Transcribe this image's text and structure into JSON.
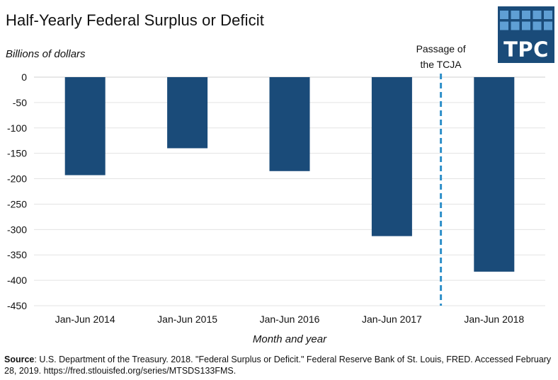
{
  "header": {
    "title": "Half-Yearly Federal Surplus or Deficit",
    "logo_text": "TPC"
  },
  "colors": {
    "bar": "#1a4b79",
    "logo_background": "#1a4b79",
    "logo_squares": "#5f9fd4",
    "divider_line": "#2e8fc9",
    "grid": "#e3e3e3"
  },
  "chart_data": {
    "type": "bar",
    "ylabel": "Billions of dollars",
    "xlabel": "Month and year",
    "categories": [
      "Jan-Jun 2014",
      "Jan-Jun 2015",
      "Jan-Jun 2016",
      "Jan-Jun 2017",
      "Jan-Jun 2018"
    ],
    "values": [
      -193,
      -140,
      -185,
      -313,
      -383
    ],
    "ylim": [
      -450,
      0
    ],
    "yticks": [
      0,
      -50,
      -100,
      -150,
      -200,
      -250,
      -300,
      -350,
      -400,
      -450
    ],
    "grid": true,
    "legend": "none",
    "annotation": {
      "lines": [
        "Passage of",
        "the TCJA"
      ],
      "position": "between Jan-Jun 2017 and Jan-Jun 2018"
    }
  },
  "footer": {
    "source_label": "Source",
    "source_text": ": U.S. Department of the Treasury. 2018. \"Federal Surplus or Deficit.\" Federal Reserve Bank of St. Louis, FRED. Accessed February 28, 2019. https://fred.stlouisfed.org/series/MTSDS133FMS."
  }
}
